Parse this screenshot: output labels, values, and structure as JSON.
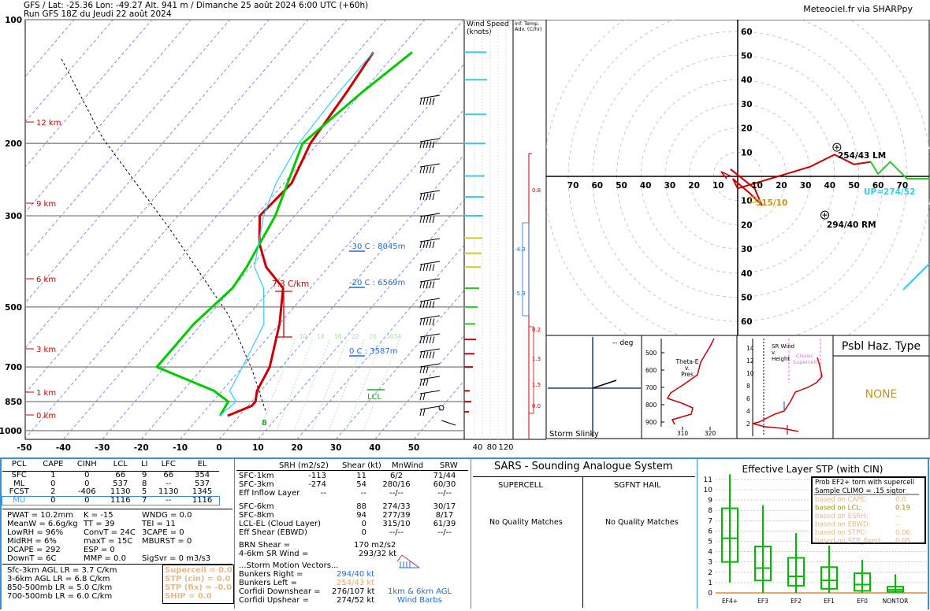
{
  "header": {
    "line1": "GFS / Lat: -25.36 Lon: -49.27 Alt. 941 m / Dimanche 25 août 2024  6:00 UTC (+60h)",
    "line2": "Run GFS 18Z du Jeudi 22 août 2024",
    "credit": "Meteociel.fr via SHARPpy"
  },
  "skewt": {
    "p_labels": [
      "100",
      "200",
      "300",
      "500",
      "700",
      "850",
      "1000"
    ],
    "t_labels": [
      "-50",
      "-40",
      "-30",
      "-20",
      "-10",
      "0",
      "10",
      "20",
      "30",
      "40",
      "50"
    ],
    "height_labels": [
      "12 km",
      "9 km",
      "6 km",
      "3 km",
      "1 km",
      "0 km"
    ],
    "freezing": [
      {
        "text": "-30 C : 8045m"
      },
      {
        "text": "-20 C : 6569m"
      },
      {
        "text": "0 C : 3587m"
      }
    ],
    "lapse_rate": "7.3 C/km",
    "lcl_label": "LCL",
    "sfc_marker": "8",
    "mix_labels": [
      "10",
      "14",
      "18",
      "22",
      "26",
      "3034"
    ],
    "wind_speed_title1": "Wind Speed",
    "wind_speed_title2": "(knots)",
    "ws_axis": [
      "40",
      "80",
      "120"
    ],
    "infl_title": "Inf. Temp.",
    "infl_title2": "Adv. (C/hr)",
    "infl_labels": [
      "0.8",
      "-4.3",
      "-5.3",
      "0.2",
      "1.3",
      "1.5",
      "0.0"
    ]
  },
  "hodograph": {
    "rings": [
      "10",
      "20",
      "30",
      "40",
      "50",
      "60",
      "70"
    ],
    "lm_label": "254/43 LM",
    "rm_label": "294/40 RM",
    "up_label": "UP=274/52",
    "sfc_label": "315/10"
  },
  "small_panels": {
    "deg_label": "-- deg",
    "storm_slinky": "Storm Slinky",
    "theta_title": "Theta-E",
    "theta_title2": "v.",
    "theta_title3": "Pres",
    "theta_ylabels": [
      "500",
      "600",
      "700",
      "800",
      "900"
    ],
    "theta_xlabels": [
      "310",
      "320"
    ],
    "srw_title": "SR Wind",
    "srw_title2": "v.",
    "srw_title3": "Height",
    "srw_ylabels": [
      "14",
      "12",
      "10",
      "8",
      "6",
      "4",
      "2"
    ],
    "srw_classic": "Classic",
    "srw_super": "Supercell",
    "haz_title": "Psbl Haz. Type",
    "haz_value": "NONE"
  },
  "parcels": {
    "headers": [
      "PCL",
      "CAPE",
      "CINH",
      "LCL",
      "LI",
      "LFC",
      "EL"
    ],
    "rows": [
      [
        "SFC",
        "1",
        "0",
        "66",
        "9",
        "66",
        "354"
      ],
      [
        "ML",
        "0",
        "0",
        "537",
        "8",
        "--",
        "537"
      ],
      [
        "FCST",
        "2",
        "-406",
        "1130",
        "5",
        "1130",
        "1345"
      ],
      [
        "MU",
        "0",
        "0",
        "1116",
        "7",
        "--",
        "1116"
      ]
    ]
  },
  "indices": {
    "col1": [
      "PWAT = 10.2mm",
      "MeanW = 6.6g/kg",
      "LowRH = 96%",
      "MidRH = 6%",
      "DCAPE = 292",
      "DownT = 6C"
    ],
    "col2": [
      "K = -15",
      "TT = 39",
      "ConvT = 24C",
      "maxT = 15C",
      "ESP = 0",
      "MMP = 0.0"
    ],
    "col3": [
      "WNDG = 0.0",
      "TEI = 11",
      "3CAPE = 0",
      "MBURST = 0",
      "",
      "SigSvr = 0 m3/s3"
    ],
    "lapse": [
      "Sfc-3km AGL LR = 3.7 C/km",
      "3-6km AGL LR = 6.8 C/km",
      "850-500mb LR = 5.0 C/km",
      "700-500mb LR = 6.0 C/km"
    ],
    "composite": [
      "Supercell = 0.0",
      "STP (cin) = 0.0",
      "STP (fix) = -0.0",
      "SHIP = 0.0"
    ]
  },
  "kinematics": {
    "headers": [
      "SRH (m2/s2)",
      "Shear (kt)",
      "MnWind",
      "SRW"
    ],
    "rows": [
      [
        "SFC-1km",
        "-113",
        "11",
        "6/2",
        "71/44"
      ],
      [
        "SFC-3km",
        "-274",
        "54",
        "280/16",
        "60/30"
      ],
      [
        "Eff Inflow Layer",
        "--",
        "--",
        "--/--",
        "--/--"
      ],
      [
        "SFC-6km",
        "",
        "88",
        "274/33",
        "30/17"
      ],
      [
        "SFC-8km",
        "",
        "94",
        "277/39",
        "8/17"
      ],
      [
        "LCL-EL (Cloud Layer)",
        "",
        "0",
        "315/10",
        "61/39"
      ],
      [
        "Eff Shear (EBWD)",
        "",
        "0",
        "--/--",
        "--/--"
      ]
    ],
    "brn": [
      "BRN Shear =",
      "170 m2/s2"
    ],
    "sr46": [
      "4-6km SR Wind =",
      "293/32 kt"
    ],
    "smv_title": "...Storm Motion Vectors...",
    "smv": [
      [
        "Bunkers Right =",
        "294/40 kt"
      ],
      [
        "Bunkers Left =",
        "254/43 kt"
      ],
      [
        "Corfidi Downshear =",
        "276/107 kt"
      ],
      [
        "Corfidi Upshear =",
        "274/52 kt"
      ]
    ],
    "barb_caption1": "1km & 6km AGL",
    "barb_caption2": "Wind Barbs"
  },
  "sars": {
    "title": "SARS - Sounding Analogue System",
    "supercell": "SUPERCELL",
    "hail": "SGFNT HAIL",
    "sup_match": "No Quality Matches",
    "hail_match": "No Quality Matches"
  },
  "stp": {
    "title": "Effective Layer STP (with CIN)",
    "legend_title1": "Prob EF2+ torn with supercell",
    "legend_title2": "Sample CLIMO = .15 sigtor",
    "legend_rows": [
      [
        "based on CAPE:",
        "0.0"
      ],
      [
        "based on LCL:",
        "0.19"
      ],
      [
        "based on ESRH:",
        "--"
      ],
      [
        "based on EBWD:",
        "--"
      ],
      [
        "based on STPC:",
        "0.06"
      ],
      [
        "based on STP_fixed:",
        "0.05"
      ]
    ],
    "yticks": [
      "0",
      "1",
      "2",
      "3",
      "4",
      "5",
      "6",
      "7",
      "8",
      "9",
      "10",
      "11"
    ],
    "categories": [
      "EF4+",
      "EF3",
      "EF2",
      "EF1",
      "EF0",
      "NONTOR"
    ]
  },
  "colors": {
    "temp": "#cc0000",
    "dew": "#00cc00",
    "wetbulb": "#33ccff",
    "cyan": "#00cccc",
    "blue": "#1f6fd1",
    "olive": "#999900",
    "orange": "#e6a66b"
  },
  "chart_data": [
    {
      "type": "line",
      "title": "",
      "xlabel": "",
      "ylabel": "",
      "x_axis": "temperature (C)",
      "y_axis": "pressure (mb)",
      "xlim": [
        -50,
        50
      ],
      "log_y": true,
      "ylim": [
        1000,
        100
      ],
      "series": [
        {
          "name": "temperature",
          "points": [
            [
              -3,
              920
            ],
            [
              1,
              870
            ],
            [
              1,
              850
            ],
            [
              -1,
              800
            ],
            [
              -3,
              700
            ],
            [
              -10,
              550
            ],
            [
              -17,
              450
            ],
            [
              -26,
              400
            ],
            [
              -33,
              350
            ],
            [
              -39,
              300
            ],
            [
              -38,
              250
            ],
            [
              -42,
              200
            ],
            [
              -44,
              150
            ],
            [
              -46,
              120
            ]
          ]
        },
        {
          "name": "dewpoint",
          "points": [
            [
              -5,
              920
            ],
            [
              -6,
              850
            ],
            [
              -12,
              800
            ],
            [
              -32,
              700
            ],
            [
              -32,
              550
            ],
            [
              -30,
              450
            ],
            [
              -31,
              400
            ],
            [
              -35,
              300
            ],
            [
              -44,
              200
            ],
            [
              -40,
              150
            ],
            [
              -36,
              120
            ]
          ]
        },
        {
          "name": "wetbulb",
          "points": [
            [
              -5,
              920
            ],
            [
              -4,
              850
            ],
            [
              -8,
              800
            ],
            [
              -10,
              700
            ],
            [
              -14,
              550
            ],
            [
              -22,
              450
            ],
            [
              -29,
              400
            ],
            [
              -38,
              300
            ],
            [
              -42,
              250
            ],
            [
              -45,
              200
            ],
            [
              -46,
              150
            ],
            [
              -46,
              120
            ]
          ]
        }
      ],
      "annotations": [
        {
          "text": "-30 C : 8045m"
        },
        {
          "text": "-20 C : 6569m"
        },
        {
          "text": "0 C : 3587m"
        },
        {
          "text": "7.3 C/km"
        },
        {
          "text": "LCL"
        }
      ]
    },
    {
      "type": "line",
      "title": "",
      "xlabel": "",
      "ylabel": "",
      "x_axis": "u (kt)",
      "y_axis": "v (kt)",
      "points": [
        [
          -3,
          3
        ],
        [
          7,
          -5
        ],
        [
          10,
          -12
        ],
        [
          8,
          -10
        ],
        [
          5,
          -7
        ],
        [
          -2,
          -1
        ],
        [
          0,
          -5
        ],
        [
          30,
          4
        ],
        [
          40,
          9
        ],
        [
          48,
          5
        ],
        [
          55,
          6
        ],
        [
          58,
          1
        ],
        [
          63,
          6
        ],
        [
          70,
          -1
        ],
        [
          80,
          -1
        ]
      ],
      "markers": [
        {
          "label": "254/43 LM",
          "x": 41,
          "y": 12
        },
        {
          "label": "294/40 RM",
          "x": 36,
          "y": -16
        }
      ]
    },
    {
      "type": "bar",
      "title": "",
      "xlabel": "",
      "ylabel": "",
      "x_axis": "wind speed (knots)",
      "y_axis": "pressure (mb)",
      "xlim": [
        0,
        120
      ],
      "values": [
        [
          900,
          12
        ],
        [
          850,
          18
        ],
        [
          800,
          14
        ],
        [
          700,
          22
        ],
        [
          650,
          26
        ],
        [
          600,
          30
        ],
        [
          550,
          28
        ],
        [
          500,
          34
        ],
        [
          450,
          38
        ],
        [
          400,
          42
        ],
        [
          370,
          44
        ],
        [
          340,
          46
        ],
        [
          300,
          48
        ],
        [
          270,
          50
        ],
        [
          240,
          52
        ],
        [
          200,
          54
        ],
        [
          170,
          56
        ],
        [
          140,
          58
        ],
        [
          120,
          56
        ],
        [
          100,
          54
        ]
      ]
    },
    {
      "type": "bar",
      "title": "Effective Layer STP (with CIN)",
      "xlabel": "",
      "ylabel": "",
      "categories": [
        "EF4+",
        "EF3",
        "EF2",
        "EF1",
        "EF0",
        "NONTOR"
      ],
      "ylim": [
        0,
        11
      ],
      "boxes": [
        {
          "cat": "EF4+",
          "whisker_low": 1.0,
          "q1": 3.0,
          "median": 5.3,
          "q3": 8.2,
          "whisker_high": 11.5
        },
        {
          "cat": "EF3",
          "whisker_low": 0.0,
          "q1": 1.2,
          "median": 2.4,
          "q3": 4.5,
          "whisker_high": 8.5
        },
        {
          "cat": "EF2",
          "whisker_low": 0.0,
          "q1": 0.7,
          "median": 1.6,
          "q3": 3.4,
          "whisker_high": 5.8
        },
        {
          "cat": "EF1",
          "whisker_low": 0.0,
          "q1": 0.4,
          "median": 1.2,
          "q3": 2.5,
          "whisker_high": 4.6
        },
        {
          "cat": "EF0",
          "whisker_low": 0.0,
          "q1": 0.2,
          "median": 0.8,
          "q3": 1.9,
          "whisker_high": 3.2
        },
        {
          "cat": "NONTOR",
          "whisker_low": 0.0,
          "q1": 0.1,
          "median": 0.3,
          "q3": 0.6,
          "whisker_high": 1.8
        }
      ]
    }
  ]
}
